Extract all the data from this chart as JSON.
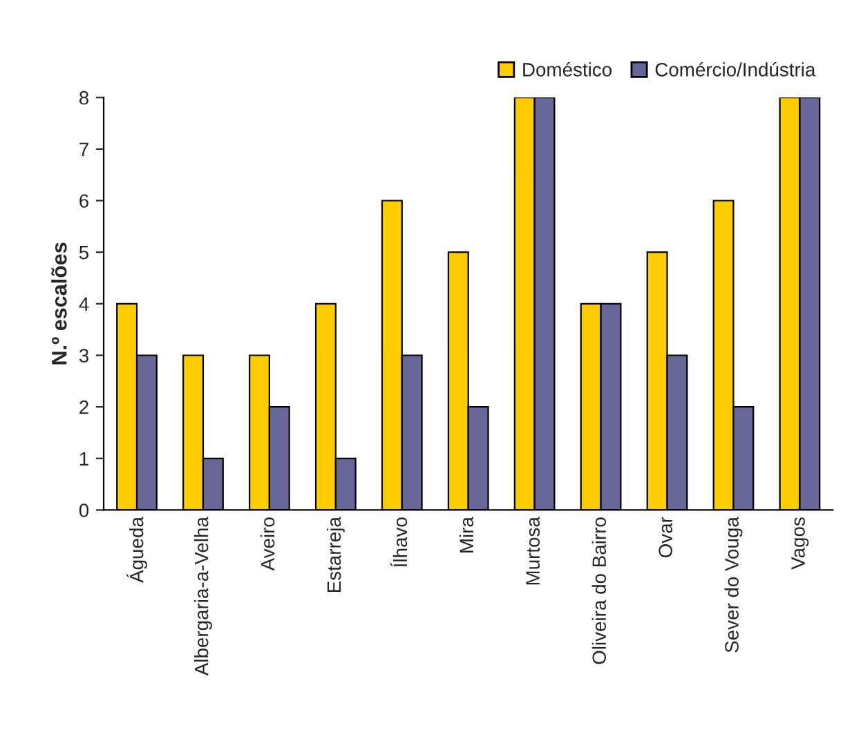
{
  "chart_data": {
    "type": "bar",
    "ylabel": "N.º escalões",
    "categories": [
      "Águeda",
      "Albergaria-a-Velha",
      "Aveiro",
      "Estarreja",
      "Ílhavo",
      "Mira",
      "Murtosa",
      "Oliveira do Bairro",
      "Ovar",
      "Sever do Vouga",
      "Vagos"
    ],
    "series": [
      {
        "name": "Doméstico",
        "color": "#ffcc00",
        "values": [
          4,
          3,
          3,
          4,
          6,
          5,
          8,
          4,
          5,
          6,
          8
        ]
      },
      {
        "name": "Comércio/Indústria",
        "color": "#666699",
        "values": [
          3,
          1,
          2,
          1,
          3,
          2,
          8,
          4,
          3,
          2,
          8
        ]
      }
    ],
    "ylim": [
      0,
      8
    ],
    "yticks": [
      0,
      1,
      2,
      3,
      4,
      5,
      6,
      7,
      8
    ],
    "grid": false,
    "legend": "top right"
  }
}
